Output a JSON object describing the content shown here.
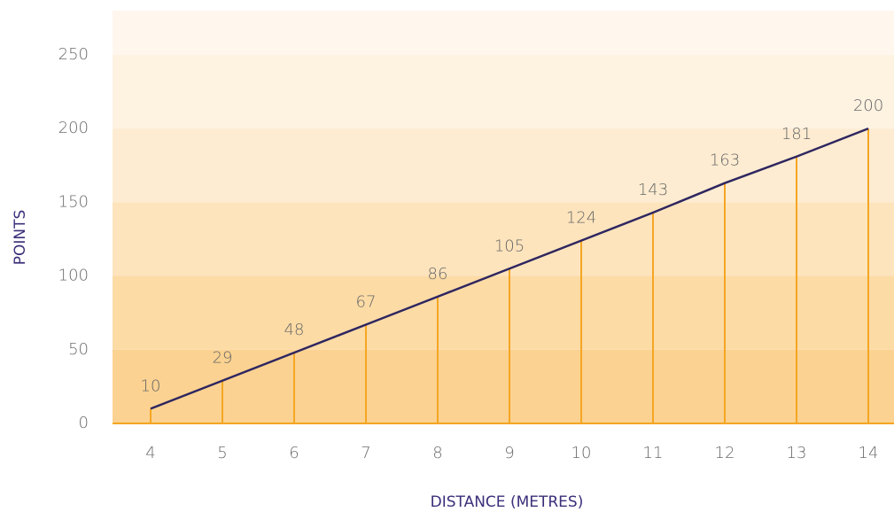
{
  "chart_data": {
    "type": "line",
    "title": "",
    "xlabel": "DISTANCE (METRES)",
    "ylabel": "POINTS",
    "x": [
      4,
      5,
      6,
      7,
      8,
      9,
      10,
      11,
      12,
      13,
      14
    ],
    "series": [
      {
        "values": [
          10,
          29,
          48,
          67,
          86,
          105,
          124,
          143,
          163,
          181,
          200
        ]
      }
    ],
    "data_labels": [
      "10",
      "29",
      "48",
      "67",
      "86",
      "105",
      "124",
      "143",
      "163",
      "181",
      "200"
    ],
    "xticks": [
      "4",
      "5",
      "6",
      "7",
      "8",
      "9",
      "10",
      "11",
      "12",
      "13",
      "14"
    ],
    "yticks": [
      "0",
      "50",
      "100",
      "150",
      "200",
      "250"
    ],
    "ylim": [
      0,
      280
    ],
    "drop_lines": true,
    "grid": false,
    "legend": "none",
    "colors": {
      "line": "#2e2660",
      "drop_line": "#f5a623",
      "baseline": "#f5a623",
      "axis_title": "#3b2f7a",
      "tick_label": "#6b6b6b",
      "bands": [
        "#fbd291",
        "#fcdba5",
        "#fde4bc",
        "#fdecd1",
        "#fef2e1",
        "#fff6ee"
      ]
    }
  }
}
